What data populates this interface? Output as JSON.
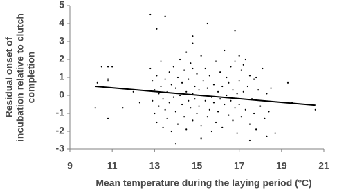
{
  "chart_data": {
    "type": "scatter",
    "ylabel": [
      "Residual onset of",
      "incubation relative to clutch",
      "completion"
    ],
    "xlabel": "Mean temperature during the laying period (ºC)",
    "x": [
      10.2,
      10.3,
      10.5,
      10.8,
      10.8,
      10.8,
      11,
      10.8,
      11.5,
      12,
      12.3,
      12.8,
      13.1,
      13.5,
      14.5,
      14.8,
      14.8,
      14.8,
      15.5,
      16.8,
      17,
      17.2,
      17.8,
      18.5,
      19.3,
      19.5,
      20.6,
      18.3,
      18.7,
      17.5,
      14,
      15.2,
      12.8,
      12.9,
      12.9,
      13,
      13,
      13.1,
      13.1,
      13.2,
      13.2,
      13.3,
      13.3,
      13.4,
      13.4,
      13.5,
      13.5,
      13.6,
      13.6,
      13.7,
      13.7,
      13.8,
      13.8,
      13.9,
      13.9,
      14,
      14,
      14.1,
      14.1,
      14.2,
      14.2,
      14.3,
      14.3,
      14.4,
      14.4,
      14.5,
      14.5,
      14.6,
      14.6,
      14.7,
      14.7,
      14.8,
      14.8,
      14.9,
      14.9,
      15,
      15,
      15.1,
      15.1,
      15.2,
      15.2,
      15.3,
      15.3,
      15.4,
      15.4,
      15.5,
      15.5,
      15.6,
      15.6,
      15.7,
      15.7,
      15.8,
      15.8,
      15.9,
      15.9,
      16,
      16,
      16.1,
      16.1,
      16.2,
      16.2,
      16.3,
      16.3,
      16.4,
      16.4,
      16.5,
      16.5,
      16.6,
      16.6,
      16.7,
      16.7,
      16.8,
      16.8,
      16.9,
      16.9,
      17,
      17,
      17.1,
      17.1,
      17.2,
      17.3,
      17.3,
      17.4,
      17.5,
      17.5,
      17.6,
      17.7,
      17.7,
      17.8,
      17.9,
      18,
      18.1,
      18.2,
      18.3,
      18.4
    ],
    "values": [
      -0.7,
      0.7,
      1.6,
      1.6,
      0.9,
      0.8,
      1.6,
      -1.3,
      -0.7,
      0.2,
      -0.4,
      4.5,
      3.7,
      4.4,
      2.4,
      2.9,
      3.3,
      1.5,
      4,
      3.6,
      2.2,
      1.7,
      1.0,
      0.4,
      0.7,
      -0.4,
      -0.8,
      -2.3,
      -2.1,
      -2.5,
      -2.7,
      -2.4,
      1.5,
      0.8,
      -0.3,
      0.3,
      -1,
      1.1,
      -1.5,
      0.1,
      -0.6,
      1.9,
      0.5,
      -0.2,
      -1.8,
      0.9,
      -0.8,
      0.2,
      -1.3,
      1.3,
      -0.4,
      0.6,
      -2,
      -0.1,
      1.6,
      0.4,
      -0.9,
      1.0,
      -1.6,
      0.0,
      2.0,
      -0.5,
      0.7,
      -1.2,
      1.4,
      0.2,
      -1.9,
      -0.3,
      0.9,
      1.8,
      -0.7,
      0.1,
      -1.4,
      0.5,
      -0.2,
      1.2,
      -1.0,
      0.3,
      -0.6,
      2.2,
      -1.7,
      0.0,
      0.8,
      -0.3,
      1.5,
      -1.2,
      0.4,
      -0.8,
      1.1,
      -0.1,
      -2.0,
      0.6,
      -0.4,
      1.9,
      -1.5,
      0.2,
      -0.9,
      1.3,
      -0.2,
      0.5,
      -1.8,
      -0.5,
      2.5,
      0.0,
      1.0,
      -1.1,
      0.7,
      -0.3,
      1.6,
      -1.4,
      0.3,
      -0.7,
      1.9,
      0.1,
      -2.1,
      0.8,
      -0.5,
      1.4,
      -1.2,
      0.2,
      -0.8,
      2.0,
      0.5,
      -1.6,
      1.1,
      -0.2,
      0.9,
      -1.0,
      -1.9,
      0.3,
      -0.6,
      1.5,
      -1.3,
      0.1,
      -0.9
    ],
    "color": "#000000",
    "trend_line": {
      "x": [
        10.2,
        20.6
      ],
      "y": [
        0.5,
        -0.55
      ]
    },
    "xlim": [
      9,
      21
    ],
    "xticks": [
      9,
      11,
      13,
      15,
      17,
      19,
      21
    ],
    "ylim": [
      -3,
      5
    ],
    "yticks": [
      -3,
      -2,
      -1,
      0,
      1,
      2,
      3,
      4,
      5
    ]
  }
}
